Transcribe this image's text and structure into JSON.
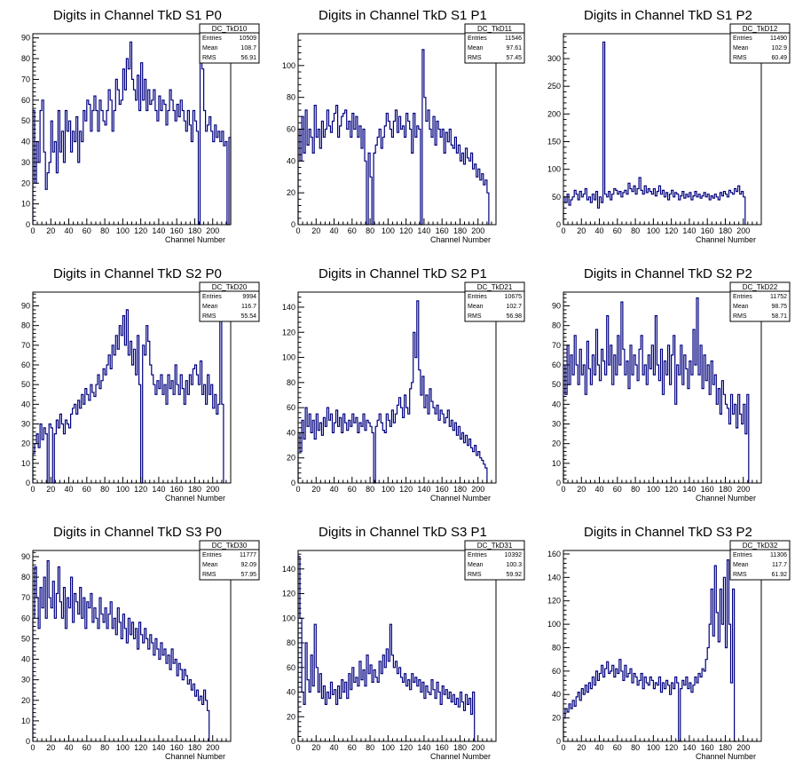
{
  "chart_data": [
    {
      "type": "line",
      "name": "DC_TkD10",
      "title": "Digits in Channel TkD S1 P0",
      "xlabel": "Channel Number",
      "ylabel": "",
      "xlim": [
        0,
        220
      ],
      "ylim": [
        0,
        92
      ],
      "xticks": [
        0,
        20,
        40,
        60,
        80,
        100,
        120,
        140,
        160,
        180,
        200
      ],
      "yticks": [
        0,
        10,
        20,
        30,
        40,
        50,
        60,
        70,
        80,
        90
      ],
      "stats": {
        "title": "DC_TkD10",
        "rows": [
          {
            "label": "Entries",
            "value": "10509"
          },
          {
            "label": "Mean",
            "value": "108.7"
          },
          {
            "label": "RMS",
            "value": "56.91"
          }
        ]
      },
      "x_start": 0,
      "x_step": 2,
      "values": [
        55,
        20,
        40,
        30,
        55,
        60,
        35,
        17,
        25,
        30,
        50,
        35,
        40,
        25,
        55,
        35,
        45,
        30,
        55,
        45,
        50,
        35,
        45,
        40,
        52,
        30,
        45,
        40,
        55,
        50,
        60,
        58,
        45,
        55,
        62,
        55,
        45,
        60,
        55,
        50,
        48,
        55,
        65,
        60,
        45,
        55,
        70,
        65,
        58,
        60,
        75,
        65,
        80,
        75,
        88,
        70,
        65,
        60,
        72,
        55,
        78,
        60,
        70,
        55,
        65,
        58,
        60,
        65,
        55,
        50,
        62,
        55,
        60,
        58,
        48,
        55,
        65,
        60,
        55,
        50,
        58,
        52,
        60,
        55,
        50,
        45,
        55,
        48,
        40,
        55,
        50,
        45,
        0,
        80,
        75,
        55,
        45,
        48,
        52,
        45,
        40,
        48,
        42,
        45,
        40,
        45,
        38,
        40,
        0,
        42
      ]
    },
    {
      "type": "line",
      "name": "DC_TkD11",
      "title": "Digits in Channel TkD S1 P1",
      "xlabel": "Channel Number",
      "ylabel": "",
      "xlim": [
        0,
        220
      ],
      "ylim": [
        0,
        120
      ],
      "xticks": [
        0,
        20,
        40,
        60,
        80,
        100,
        120,
        140,
        160,
        180,
        200
      ],
      "yticks": [
        0,
        20,
        40,
        60,
        80,
        100
      ],
      "stats": {
        "title": "DC_TkD11",
        "rows": [
          {
            "label": "Entries",
            "value": "11546"
          },
          {
            "label": "Mean",
            "value": "97.61"
          },
          {
            "label": "RMS",
            "value": "57.45"
          }
        ]
      },
      "x_start": 0,
      "x_step": 2,
      "values": [
        60,
        40,
        68,
        45,
        72,
        50,
        60,
        55,
        45,
        75,
        55,
        60,
        48,
        65,
        55,
        60,
        72,
        62,
        58,
        65,
        70,
        75,
        55,
        62,
        68,
        70,
        72,
        60,
        65,
        55,
        70,
        60,
        68,
        55,
        62,
        48,
        60,
        40,
        0,
        45,
        30,
        0,
        45,
        50,
        55,
        60,
        48,
        55,
        62,
        70,
        65,
        60,
        55,
        65,
        72,
        58,
        68,
        60,
        62,
        55,
        70,
        65,
        60,
        45,
        70,
        55,
        62,
        60,
        0,
        110,
        80,
        65,
        72,
        60,
        55,
        68,
        50,
        65,
        60,
        55,
        60,
        45,
        58,
        52,
        60,
        50,
        48,
        55,
        45,
        50,
        40,
        45,
        38,
        48,
        42,
        40,
        45,
        35,
        38,
        30,
        35,
        28,
        32,
        25,
        28,
        20
      ]
    },
    {
      "type": "line",
      "name": "DC_TkD12",
      "title": "Digits in Channel TkD S1 P2",
      "xlabel": "Channel Number",
      "ylabel": "",
      "xlim": [
        0,
        220
      ],
      "ylim": [
        0,
        345
      ],
      "xticks": [
        0,
        20,
        40,
        60,
        80,
        100,
        120,
        140,
        160,
        180,
        200
      ],
      "yticks": [
        0,
        50,
        100,
        150,
        200,
        250,
        300
      ],
      "stats": {
        "title": "DC_TkD12",
        "rows": [
          {
            "label": "Entries",
            "value": "11490"
          },
          {
            "label": "Mean",
            "value": "102.9"
          },
          {
            "label": "RMS",
            "value": "60.49"
          }
        ]
      },
      "x_start": 0,
      "x_step": 2,
      "values": [
        50,
        40,
        55,
        35,
        45,
        50,
        62,
        55,
        45,
        60,
        50,
        55,
        65,
        45,
        50,
        40,
        55,
        45,
        60,
        30,
        50,
        40,
        330,
        55,
        50,
        60,
        45,
        55,
        65,
        62,
        55,
        60,
        50,
        58,
        62,
        55,
        75,
        65,
        60,
        70,
        55,
        65,
        85,
        62,
        55,
        70,
        58,
        65,
        60,
        55,
        65,
        52,
        60,
        70,
        55,
        62,
        50,
        58,
        45,
        55,
        62,
        50,
        58,
        55,
        45,
        52,
        60,
        48,
        55,
        50,
        58,
        45,
        52,
        60,
        50,
        55,
        48,
        52,
        58,
        50,
        55,
        45,
        52,
        48,
        55,
        50,
        45,
        58,
        52,
        60,
        55,
        50,
        62,
        58,
        55,
        65,
        60,
        70,
        55,
        60,
        50
      ]
    },
    {
      "type": "line",
      "name": "DC_TkD20",
      "title": "Digits in Channel TkD S2 P0",
      "xlabel": "Channel Number",
      "ylabel": "",
      "xlim": [
        0,
        220
      ],
      "ylim": [
        0,
        97
      ],
      "xticks": [
        0,
        20,
        40,
        60,
        80,
        100,
        120,
        140,
        160,
        180,
        200
      ],
      "yticks": [
        0,
        10,
        20,
        30,
        40,
        50,
        60,
        70,
        80,
        90
      ],
      "stats": {
        "title": "DC_TkD20",
        "rows": [
          {
            "label": "Entries",
            "value": "9994"
          },
          {
            "label": "Mean",
            "value": "116.7"
          },
          {
            "label": "RMS",
            "value": "55.54"
          }
        ]
      },
      "x_start": 0,
      "x_step": 2,
      "values": [
        15,
        20,
        25,
        18,
        30,
        22,
        28,
        25,
        0,
        30,
        28,
        0,
        25,
        32,
        28,
        35,
        30,
        25,
        32,
        30,
        28,
        35,
        38,
        40,
        35,
        42,
        38,
        45,
        40,
        48,
        45,
        42,
        50,
        46,
        44,
        50,
        55,
        48,
        52,
        58,
        55,
        60,
        65,
        58,
        70,
        65,
        75,
        68,
        80,
        75,
        85,
        70,
        88,
        65,
        72,
        60,
        68,
        55,
        75,
        50,
        0,
        70,
        65,
        80,
        72,
        60,
        55,
        50,
        45,
        52,
        48,
        55,
        45,
        50,
        40,
        55,
        48,
        52,
        45,
        60,
        50,
        45,
        55,
        48,
        40,
        52,
        45,
        55,
        50,
        58,
        60,
        55,
        50,
        62,
        45,
        50,
        40,
        55,
        45,
        50,
        38,
        45,
        35,
        40,
        85,
        40
      ]
    },
    {
      "type": "line",
      "name": "DC_TkD21",
      "title": "Digits in Channel TkD S2 P1",
      "xlabel": "Channel Number",
      "ylabel": "",
      "xlim": [
        0,
        220
      ],
      "ylim": [
        0,
        152
      ],
      "xticks": [
        0,
        20,
        40,
        60,
        80,
        100,
        120,
        140,
        160,
        180,
        200
      ],
      "yticks": [
        0,
        20,
        40,
        60,
        80,
        100,
        120,
        140
      ],
      "stats": {
        "title": "DC_TkD21",
        "rows": [
          {
            "label": "Entries",
            "value": "10675"
          },
          {
            "label": "Mean",
            "value": "102.7"
          },
          {
            "label": "RMS",
            "value": "56.98"
          }
        ]
      },
      "x_start": 0,
      "x_step": 2,
      "values": [
        40,
        25,
        50,
        35,
        60,
        45,
        55,
        40,
        50,
        35,
        55,
        42,
        48,
        38,
        52,
        45,
        60,
        50,
        55,
        40,
        48,
        58,
        45,
        52,
        40,
        55,
        48,
        42,
        50,
        45,
        55,
        48,
        52,
        40,
        48,
        45,
        55,
        42,
        50,
        48,
        45,
        40,
        0,
        45,
        50,
        55,
        48,
        42,
        40,
        55,
        50,
        45,
        58,
        48,
        55,
        62,
        68,
        60,
        52,
        70,
        60,
        55,
        75,
        80,
        120,
        100,
        145,
        90,
        70,
        85,
        60,
        70,
        55,
        75,
        65,
        60,
        55,
        62,
        50,
        58,
        55,
        48,
        52,
        58,
        45,
        50,
        42,
        48,
        38,
        45,
        35,
        40,
        32,
        38,
        30,
        35,
        28,
        25,
        30,
        22,
        25,
        20,
        18,
        15,
        12
      ]
    },
    {
      "type": "line",
      "name": "DC_TkD22",
      "title": "Digits in Channel TkD S2 P2",
      "xlabel": "Channel Number",
      "ylabel": "",
      "xlim": [
        0,
        220
      ],
      "ylim": [
        0,
        97
      ],
      "xticks": [
        0,
        20,
        40,
        60,
        80,
        100,
        120,
        140,
        160,
        180,
        200
      ],
      "yticks": [
        0,
        10,
        20,
        30,
        40,
        50,
        60,
        70,
        80,
        90
      ],
      "stats": {
        "title": "DC_TkD22",
        "rows": [
          {
            "label": "Entries",
            "value": "11752"
          },
          {
            "label": "Mean",
            "value": "98.75"
          },
          {
            "label": "RMS",
            "value": "58.71"
          }
        ]
      },
      "x_start": 0,
      "x_step": 2,
      "values": [
        60,
        45,
        70,
        50,
        65,
        55,
        75,
        60,
        50,
        68,
        55,
        60,
        45,
        72,
        58,
        50,
        65,
        55,
        78,
        60,
        52,
        68,
        62,
        55,
        85,
        60,
        70,
        50,
        65,
        55,
        75,
        60,
        92,
        68,
        55,
        62,
        48,
        70,
        55,
        65,
        60,
        52,
        68,
        75,
        55,
        60,
        50,
        65,
        58,
        70,
        55,
        85,
        60,
        52,
        68,
        45,
        62,
        55,
        70,
        50,
        65,
        75,
        40,
        60,
        55,
        70,
        50,
        65,
        58,
        48,
        62,
        55,
        78,
        60,
        94,
        55,
        70,
        48,
        65,
        52,
        60,
        45,
        62,
        50,
        55,
        40,
        48,
        35,
        52,
        45,
        40,
        38,
        30,
        45,
        35,
        40,
        28,
        45,
        35,
        30,
        40,
        25,
        45
      ]
    },
    {
      "type": "line",
      "name": "DC_TkD30",
      "title": "Digits in Channel TkD S3 P0",
      "xlabel": "Channel Number",
      "ylabel": "",
      "xlim": [
        0,
        220
      ],
      "ylim": [
        0,
        93
      ],
      "xticks": [
        0,
        20,
        40,
        60,
        80,
        100,
        120,
        140,
        160,
        180,
        200
      ],
      "yticks": [
        0,
        10,
        20,
        30,
        40,
        50,
        60,
        70,
        80,
        90
      ],
      "stats": {
        "title": "DC_TkD30",
        "rows": [
          {
            "label": "Entries",
            "value": "11777"
          },
          {
            "label": "Mean",
            "value": "92.09"
          },
          {
            "label": "RMS",
            "value": "57.95"
          }
        ]
      },
      "x_start": 0,
      "x_step": 2,
      "values": [
        60,
        85,
        70,
        55,
        75,
        65,
        80,
        60,
        88,
        70,
        65,
        78,
        60,
        72,
        85,
        68,
        60,
        75,
        55,
        70,
        65,
        80,
        58,
        72,
        68,
        62,
        75,
        60,
        70,
        55,
        68,
        65,
        72,
        58,
        65,
        60,
        55,
        70,
        62,
        58,
        65,
        55,
        62,
        68,
        55,
        60,
        52,
        65,
        58,
        50,
        62,
        55,
        48,
        60,
        52,
        58,
        50,
        55,
        45,
        58,
        52,
        48,
        55,
        50,
        45,
        52,
        48,
        42,
        50,
        45,
        40,
        48,
        42,
        45,
        38,
        42,
        35,
        45,
        38,
        40,
        32,
        38,
        35,
        30,
        35,
        32,
        28,
        30,
        25,
        28,
        22,
        25,
        20,
        22,
        18,
        25,
        20,
        15
      ]
    },
    {
      "type": "line",
      "name": "DC_TkD31",
      "title": "Digits in Channel TkD S3 P1",
      "xlabel": "Channel Number",
      "ylabel": "",
      "xlim": [
        0,
        220
      ],
      "ylim": [
        0,
        155
      ],
      "xticks": [
        0,
        20,
        40,
        60,
        80,
        100,
        120,
        140,
        160,
        180,
        200
      ],
      "yticks": [
        0,
        20,
        40,
        60,
        80,
        100,
        120,
        140
      ],
      "stats": {
        "title": "DC_TkD31",
        "rows": [
          {
            "label": "Entries",
            "value": "10392"
          },
          {
            "label": "Mean",
            "value": "100.3"
          },
          {
            "label": "RMS",
            "value": "59.92"
          }
        ]
      },
      "x_start": 0,
      "x_step": 2,
      "values": [
        150,
        100,
        40,
        30,
        80,
        50,
        40,
        70,
        45,
        95,
        60,
        40,
        55,
        35,
        45,
        30,
        40,
        35,
        48,
        38,
        42,
        30,
        45,
        35,
        50,
        40,
        48,
        35,
        55,
        42,
        60,
        48,
        52,
        45,
        65,
        50,
        58,
        45,
        70,
        55,
        62,
        48,
        58,
        52,
        48,
        65,
        55,
        70,
        60,
        75,
        65,
        95,
        70,
        60,
        65,
        55,
        60,
        52,
        48,
        55,
        45,
        50,
        42,
        55,
        48,
        52,
        45,
        50,
        40,
        48,
        35,
        45,
        40,
        38,
        50,
        42,
        35,
        48,
        40,
        30,
        45,
        38,
        42,
        35,
        40,
        32,
        38,
        30,
        35,
        28,
        40,
        32,
        25,
        38,
        30,
        35,
        22,
        40
      ]
    },
    {
      "type": "line",
      "name": "DC_TkD32",
      "title": "Digits in Channel TkD S3 P2",
      "xlabel": "Channel Number",
      "ylabel": "",
      "xlim": [
        0,
        220
      ],
      "ylim": [
        0,
        163
      ],
      "xticks": [
        0,
        20,
        40,
        60,
        80,
        100,
        120,
        140,
        160,
        180,
        200
      ],
      "yticks": [
        0,
        20,
        40,
        60,
        80,
        100,
        120,
        140,
        160
      ],
      "stats": {
        "title": "DC_TkD32",
        "rows": [
          {
            "label": "Entries",
            "value": "11306"
          },
          {
            "label": "Mean",
            "value": "117.7"
          },
          {
            "label": "RMS",
            "value": "61.92"
          }
        ]
      },
      "x_start": 0,
      "x_step": 2,
      "values": [
        20,
        28,
        25,
        32,
        28,
        35,
        30,
        38,
        42,
        35,
        45,
        40,
        48,
        42,
        50,
        45,
        55,
        48,
        60,
        52,
        58,
        65,
        55,
        62,
        68,
        58,
        60,
        65,
        55,
        62,
        58,
        70,
        60,
        52,
        65,
        55,
        58,
        62,
        50,
        58,
        55,
        48,
        52,
        58,
        45,
        55,
        50,
        48,
        55,
        52,
        45,
        50,
        48,
        55,
        42,
        50,
        45,
        52,
        48,
        40,
        50,
        45,
        55,
        50,
        0,
        45,
        52,
        48,
        55,
        45,
        50,
        42,
        48,
        55,
        50,
        58,
        55,
        62,
        60,
        70,
        80,
        100,
        130,
        90,
        150,
        110,
        85,
        130,
        100,
        140,
        80,
        155,
        100,
        50,
        130,
        0
      ]
    }
  ]
}
